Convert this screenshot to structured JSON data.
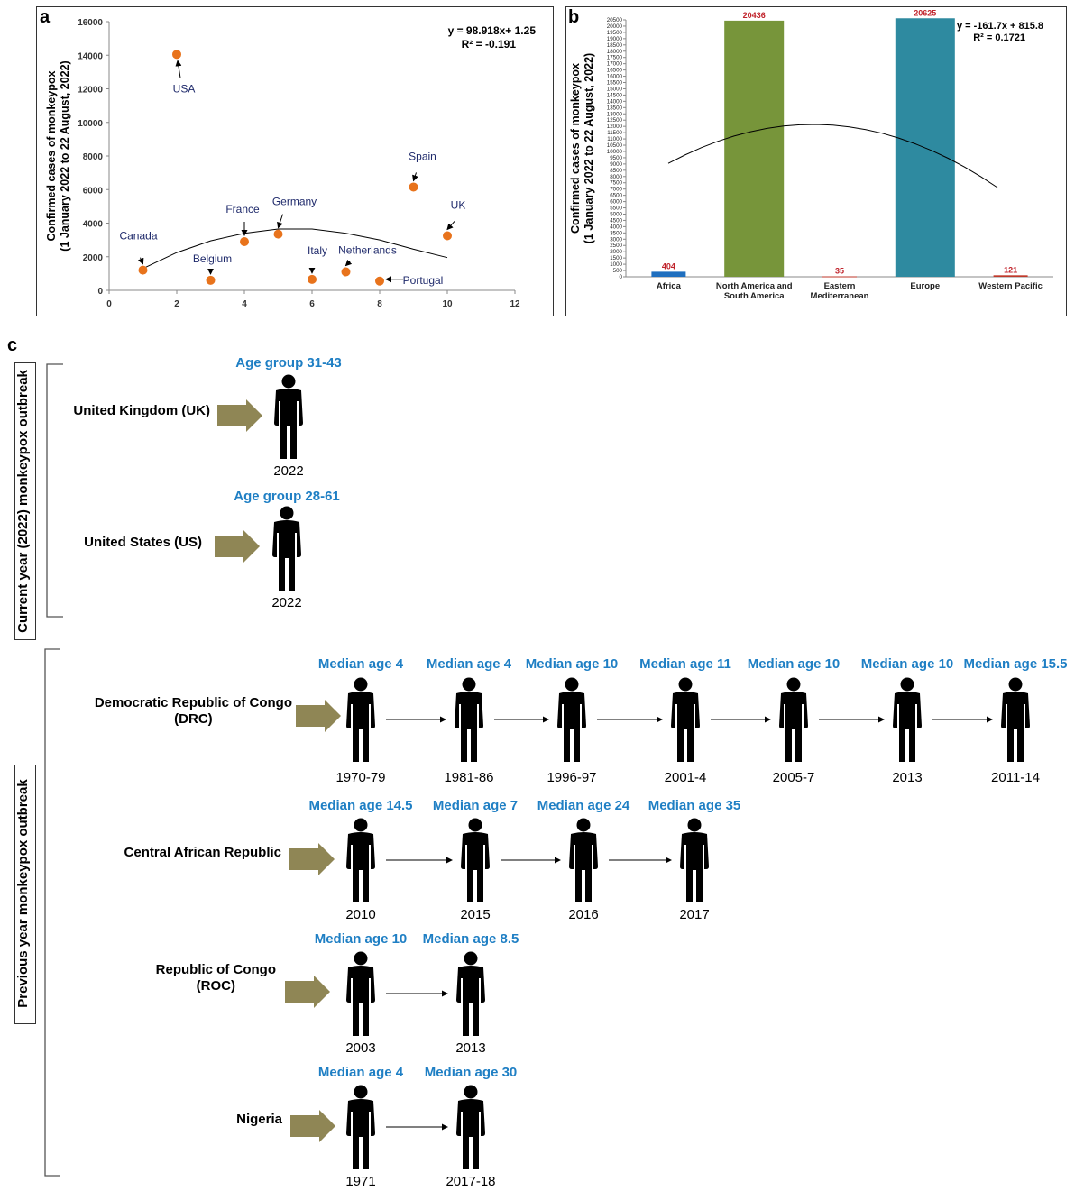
{
  "panel_a_letter": "a",
  "panel_b_letter": "b",
  "panel_c_letter": "c",
  "chart_data": [
    {
      "type": "scatter",
      "ylabel": "Confirmed cases of monkeypox",
      "ylabel2": "(1 January 2022 to 22 August, 2022)",
      "xlim": [
        0,
        12
      ],
      "ylim": [
        0,
        16000
      ],
      "xticks": [
        "0",
        "2",
        "4",
        "6",
        "8",
        "10",
        "12"
      ],
      "yticks": [
        "0",
        "2000",
        "4000",
        "6000",
        "8000",
        "10000",
        "12000",
        "14000",
        "16000"
      ],
      "equation": "y = 98.918x+ 1.25",
      "r2": "R² = -0.191",
      "marker_color": "#e8731c",
      "points": [
        {
          "label": "Canada",
          "x": 1,
          "y": 1200
        },
        {
          "label": "USA",
          "x": 2,
          "y": 14050
        },
        {
          "label": "Belgium",
          "x": 3,
          "y": 600
        },
        {
          "label": "France",
          "x": 4,
          "y": 2900
        },
        {
          "label": "Germany",
          "x": 5,
          "y": 3350
        },
        {
          "label": "Italy",
          "x": 6,
          "y": 650
        },
        {
          "label": "Netherlands",
          "x": 7,
          "y": 1100
        },
        {
          "label": "Portugal",
          "x": 8,
          "y": 550
        },
        {
          "label": "Spain",
          "x": 9,
          "y": 6150
        },
        {
          "label": "UK",
          "x": 10,
          "y": 3250
        }
      ],
      "trend_color": "#000000"
    },
    {
      "type": "bar",
      "ylabel": "Confirmed cases of monkeypox",
      "ylabel2": "(1 January 2022 to 22 August, 2022)",
      "ylim": [
        0,
        20500
      ],
      "ystep": 500,
      "equation": "y = -161.7x + 815.8",
      "r2": "R² = 0.1721",
      "categories": [
        "Africa",
        "North America and South America",
        "Eastern Mediterranean",
        "Europe",
        "Western Pacific"
      ],
      "category_lines": [
        [
          "Africa"
        ],
        [
          "North America and",
          "South America"
        ],
        [
          "Eastern",
          "Mediterranean"
        ],
        [
          "Europe"
        ],
        [
          "Western Pacific"
        ]
      ],
      "values": [
        404,
        20436,
        35,
        20625,
        121
      ],
      "value_labels": [
        "404",
        "20436",
        "35",
        "20625",
        "121"
      ],
      "colors": [
        "#1f6fbf",
        "#77953a",
        "#c0392b",
        "#2e8aa0",
        "#c0392b"
      ],
      "label_color": "#c0232b"
    }
  ],
  "panel_c": {
    "current_label": "Current year (2022) monkeypox outbreak",
    "previous_label": "Previous year monkeypox outbreak",
    "rows": [
      {
        "country": [
          "United Kingdom (UK)"
        ],
        "entries": [
          {
            "age": "Age group 31-43",
            "year": "2022"
          }
        ]
      },
      {
        "country": [
          "United States (US)"
        ],
        "entries": [
          {
            "age": "Age group 28-61",
            "year": "2022"
          }
        ]
      },
      {
        "country": [
          "Democratic Republic of Congo",
          "(DRC)"
        ],
        "entries": [
          {
            "age": "Median age 4",
            "year": "1970-79"
          },
          {
            "age": "Median age 4",
            "year": "1981-86"
          },
          {
            "age": "Median age 10",
            "year": "1996-97"
          },
          {
            "age": "Median age 11",
            "year": "2001-4"
          },
          {
            "age": "Median age 10",
            "year": "2005-7"
          },
          {
            "age": "Median age 10",
            "year": "2013"
          },
          {
            "age": "Median age 15.5",
            "year": "2011-14"
          }
        ]
      },
      {
        "country": [
          "Central African Republic"
        ],
        "entries": [
          {
            "age": "Median age 14.5",
            "year": "2010"
          },
          {
            "age": "Median age 7",
            "year": "2015"
          },
          {
            "age": "Median age 24",
            "year": "2016"
          },
          {
            "age": "Median age 35",
            "year": "2017"
          }
        ]
      },
      {
        "country": [
          "Republic of Congo",
          "(ROC)"
        ],
        "entries": [
          {
            "age": "Median age 10",
            "year": "2003"
          },
          {
            "age": "Median age 8.5",
            "year": "2013"
          }
        ]
      },
      {
        "country": [
          "Nigeria"
        ],
        "entries": [
          {
            "age": "Median age 4",
            "year": "1971"
          },
          {
            "age": "Median age 30",
            "year": "2017-18"
          }
        ]
      }
    ],
    "arrow_color": "#8f8655",
    "age_color": "#1f7fc4"
  }
}
